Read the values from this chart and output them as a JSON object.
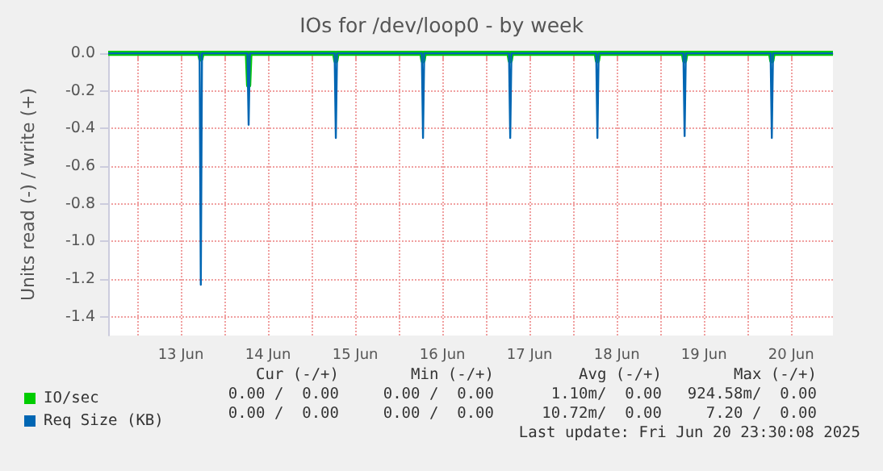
{
  "chart_data": {
    "type": "line",
    "title": "IOs for /dev/loop0 - by week",
    "ylabel": "Units read (-) / write (+)",
    "xlim": [
      "2025-06-12T16:00",
      "2025-06-20T23:30"
    ],
    "xticks": [
      {
        "value": "2025-06-13T00:00",
        "label": null
      },
      {
        "value": "2025-06-13T12:00",
        "label": "13 Jun"
      },
      {
        "value": "2025-06-14T00:00",
        "label": null
      },
      {
        "value": "2025-06-14T12:00",
        "label": "14 Jun"
      },
      {
        "value": "2025-06-15T00:00",
        "label": null
      },
      {
        "value": "2025-06-15T12:00",
        "label": "15 Jun"
      },
      {
        "value": "2025-06-16T00:00",
        "label": null
      },
      {
        "value": "2025-06-16T12:00",
        "label": "16 Jun"
      },
      {
        "value": "2025-06-17T00:00",
        "label": null
      },
      {
        "value": "2025-06-17T12:00",
        "label": "17 Jun"
      },
      {
        "value": "2025-06-18T00:00",
        "label": null
      },
      {
        "value": "2025-06-18T12:00",
        "label": "18 Jun"
      },
      {
        "value": "2025-06-19T00:00",
        "label": null
      },
      {
        "value": "2025-06-19T12:00",
        "label": "19 Jun"
      },
      {
        "value": "2025-06-20T00:00",
        "label": null
      },
      {
        "value": "2025-06-20T12:00",
        "label": "20 Jun"
      }
    ],
    "ylim": [
      -1.5,
      0
    ],
    "yticks": [
      {
        "value": -1.4,
        "label": "-1.4"
      },
      {
        "value": -1.2,
        "label": "-1.2"
      },
      {
        "value": -1.0,
        "label": "-1.0"
      },
      {
        "value": -0.8,
        "label": "-0.8"
      },
      {
        "value": -0.6,
        "label": "-0.6"
      },
      {
        "value": -0.4,
        "label": "-0.4"
      },
      {
        "value": -0.2,
        "label": "-0.2"
      },
      {
        "value": 0,
        "label": "0.0"
      }
    ],
    "grid": true,
    "legend": "bottom left",
    "marker": "none",
    "line_style": "solid",
    "series": [
      {
        "name": "IO/sec",
        "color": "#00cc00",
        "x": [
          "2025-06-12T16:00",
          "2025-06-13T17:10",
          "2025-06-13T17:30",
          "2025-06-13T17:50",
          "2025-06-14T06:20",
          "2025-06-14T06:40",
          "2025-06-14T07:00",
          "2025-06-15T06:20",
          "2025-06-15T06:40",
          "2025-06-15T07:00",
          "2025-06-16T06:20",
          "2025-06-16T06:40",
          "2025-06-16T07:00",
          "2025-06-17T06:20",
          "2025-06-17T06:40",
          "2025-06-17T07:00",
          "2025-06-18T06:20",
          "2025-06-18T06:40",
          "2025-06-18T07:00",
          "2025-06-19T06:20",
          "2025-06-19T06:40",
          "2025-06-19T07:00",
          "2025-06-20T06:20",
          "2025-06-20T06:40",
          "2025-06-20T07:00",
          "2025-06-20T23:30"
        ],
        "values": [
          0,
          0,
          -0.03,
          0,
          0,
          -0.17,
          0,
          0,
          -0.04,
          0,
          0,
          -0.04,
          0,
          0,
          -0.04,
          0,
          0,
          -0.04,
          0,
          0,
          -0.04,
          0,
          0,
          -0.04,
          0,
          0
        ]
      },
      {
        "name": "Req Size (KB)",
        "color": "#0066b3",
        "x": [
          "2025-06-12T16:00",
          "2025-06-13T17:10",
          "2025-06-13T17:30",
          "2025-06-13T17:50",
          "2025-06-14T06:20",
          "2025-06-14T06:40",
          "2025-06-14T07:00",
          "2025-06-15T06:20",
          "2025-06-15T06:40",
          "2025-06-15T07:00",
          "2025-06-16T06:20",
          "2025-06-16T06:40",
          "2025-06-16T07:00",
          "2025-06-17T06:20",
          "2025-06-17T06:40",
          "2025-06-17T07:00",
          "2025-06-18T06:20",
          "2025-06-18T06:40",
          "2025-06-18T07:00",
          "2025-06-19T06:20",
          "2025-06-19T06:40",
          "2025-06-19T07:00",
          "2025-06-20T06:20",
          "2025-06-20T06:40",
          "2025-06-20T07:00",
          "2025-06-20T23:30"
        ],
        "values": [
          0,
          0,
          -1.23,
          0,
          0,
          -0.38,
          0,
          0,
          -0.45,
          0,
          0,
          -0.45,
          0,
          0,
          -0.45,
          0,
          0,
          -0.45,
          0,
          0,
          -0.44,
          0,
          0,
          -0.45,
          0,
          0
        ]
      }
    ],
    "annotations": [
      "Cur (-/+)",
      "Min (-/+)",
      "Avg (-/+)",
      "Max (-/+)",
      "0.00 /  0.00",
      "0.00 /  0.00",
      "1.10m/  0.00",
      "924.58m/  0.00",
      "0.00 /  0.00",
      "0.00 /  0.00",
      "10.72m/  0.00",
      "7.20 /  0.00",
      "Last update: Fri Jun 20 23:30:08 2025"
    ]
  }
}
